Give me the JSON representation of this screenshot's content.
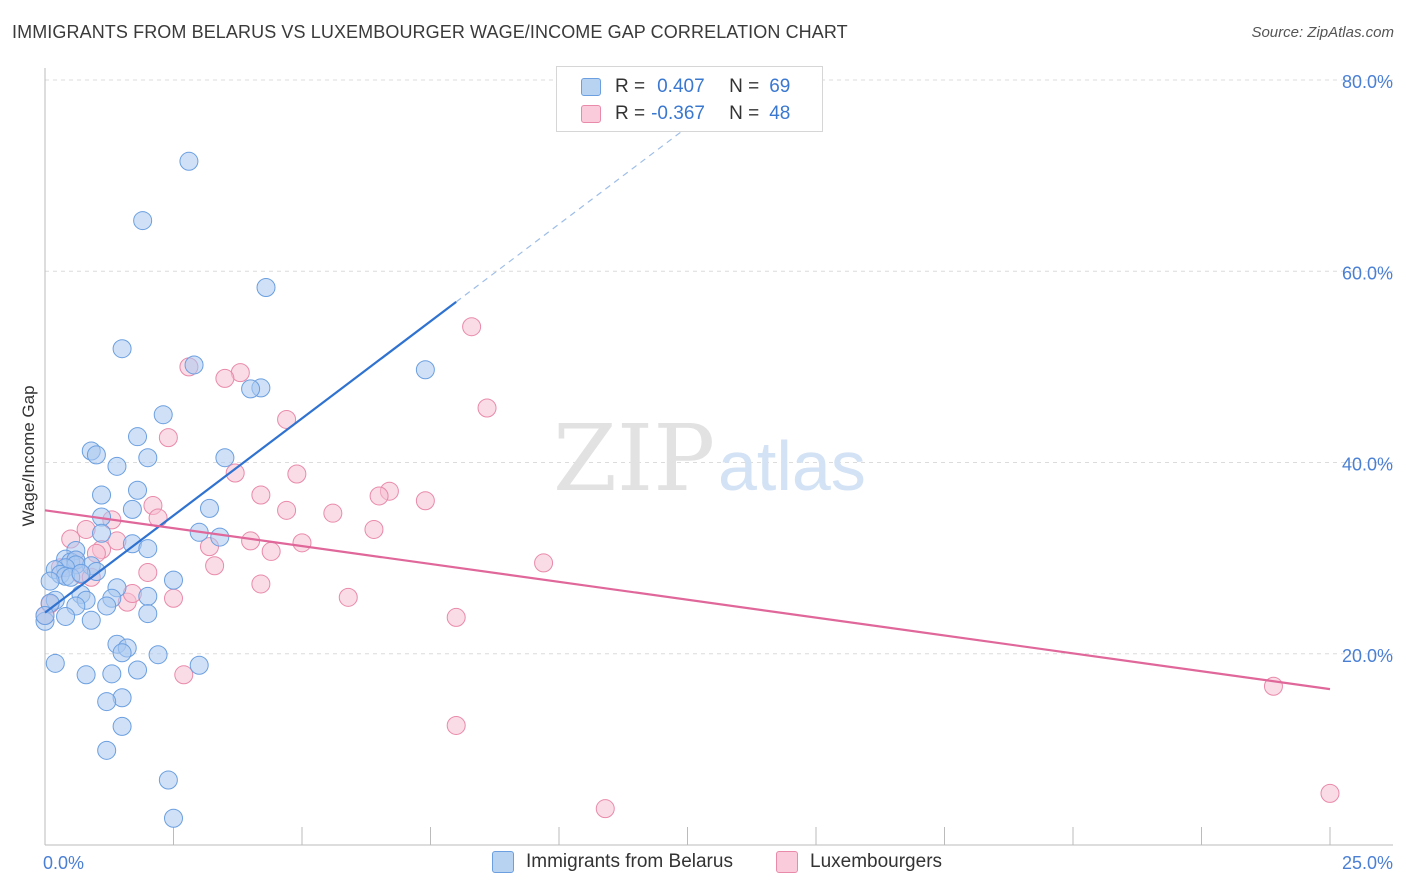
{
  "title": "IMMIGRANTS FROM BELARUS VS LUXEMBOURGER WAGE/INCOME GAP CORRELATION CHART",
  "source": "Source: ZipAtlas.com",
  "watermark": {
    "zip": "ZIP",
    "atlas": "atlas"
  },
  "legend_box": {
    "rows": [
      {
        "r_label": "R =",
        "r_value": "0.407",
        "n_label": "N =",
        "n_value": "69"
      },
      {
        "r_label": "R =",
        "r_value": "-0.367",
        "n_label": "N =",
        "n_value": "48"
      }
    ]
  },
  "colors": {
    "blue_fill": "#a9c8f0",
    "blue_stroke": "#6b9fe0",
    "blue_line": "#2f72d0",
    "pink_fill": "#f6bfd2",
    "pink_stroke": "#e98aaa",
    "pink_line": "#e0679a",
    "tick_text": "#4a7fd4",
    "grid": "#dcdcdc"
  },
  "chart_data": {
    "type": "scatter",
    "title": "IMMIGRANTS FROM BELARUS VS LUXEMBOURGER WAGE/INCOME GAP CORRELATION CHART",
    "xlabel": "",
    "ylabel": "Wage/Income Gap",
    "xlim": [
      0,
      25
    ],
    "ylim": [
      0,
      80
    ],
    "x_tick_labels": [
      "0.0%",
      "25.0%"
    ],
    "y_tick_labels": [
      "20.0%",
      "40.0%",
      "60.0%",
      "80.0%"
    ],
    "y_ticks": [
      20,
      40,
      60,
      80
    ],
    "grid": true,
    "series": [
      {
        "name": "Immigrants from Belarus",
        "color": "blue",
        "points": [
          [
            2.8,
            71.5
          ],
          [
            1.9,
            65.3
          ],
          [
            4.3,
            58.3
          ],
          [
            1.5,
            51.9
          ],
          [
            2.9,
            50.2
          ],
          [
            7.4,
            49.7
          ],
          [
            4.2,
            47.8
          ],
          [
            4.0,
            47.7
          ],
          [
            2.3,
            45.0
          ],
          [
            1.8,
            42.7
          ],
          [
            0.9,
            41.2
          ],
          [
            1.0,
            40.8
          ],
          [
            2.0,
            40.5
          ],
          [
            3.5,
            40.5
          ],
          [
            1.4,
            39.6
          ],
          [
            1.8,
            37.1
          ],
          [
            1.1,
            36.6
          ],
          [
            1.7,
            35.1
          ],
          [
            3.2,
            35.2
          ],
          [
            1.1,
            34.3
          ],
          [
            3.0,
            32.7
          ],
          [
            1.1,
            32.6
          ],
          [
            3.4,
            32.2
          ],
          [
            1.7,
            31.5
          ],
          [
            2.0,
            31.0
          ],
          [
            0.6,
            30.8
          ],
          [
            0.4,
            29.9
          ],
          [
            0.5,
            29.6
          ],
          [
            0.6,
            29.8
          ],
          [
            0.9,
            29.2
          ],
          [
            0.6,
            29.3
          ],
          [
            0.4,
            29.0
          ],
          [
            0.2,
            28.8
          ],
          [
            1.0,
            28.6
          ],
          [
            0.3,
            28.3
          ],
          [
            0.4,
            28.1
          ],
          [
            0.5,
            28.0
          ],
          [
            0.7,
            28.4
          ],
          [
            0.1,
            27.6
          ],
          [
            2.5,
            27.7
          ],
          [
            1.4,
            26.9
          ],
          [
            0.7,
            26.2
          ],
          [
            2.0,
            26.0
          ],
          [
            1.3,
            25.8
          ],
          [
            0.2,
            25.6
          ],
          [
            0.8,
            25.6
          ],
          [
            0.1,
            25.3
          ],
          [
            1.2,
            25.0
          ],
          [
            0.6,
            25.0
          ],
          [
            2.0,
            24.2
          ],
          [
            0.4,
            23.9
          ],
          [
            0.9,
            23.5
          ],
          [
            0.0,
            23.4
          ],
          [
            1.4,
            21.0
          ],
          [
            1.6,
            20.6
          ],
          [
            1.5,
            20.1
          ],
          [
            2.2,
            19.9
          ],
          [
            0.2,
            19.0
          ],
          [
            3.0,
            18.8
          ],
          [
            1.8,
            18.3
          ],
          [
            0.8,
            17.8
          ],
          [
            1.3,
            17.9
          ],
          [
            1.5,
            15.4
          ],
          [
            1.2,
            15.0
          ],
          [
            1.5,
            12.4
          ],
          [
            1.2,
            9.9
          ],
          [
            2.4,
            6.8
          ],
          [
            2.5,
            2.8
          ],
          [
            0.0,
            24.0
          ]
        ],
        "trend": {
          "x0": 0.0,
          "y0": 24.3,
          "x1": 8.0,
          "y1": 56.8,
          "dash_to_x": 13.5
        }
      },
      {
        "name": "Luxembourgers",
        "color": "pink",
        "points": [
          [
            8.3,
            54.2
          ],
          [
            2.8,
            50.0
          ],
          [
            3.8,
            49.4
          ],
          [
            3.5,
            48.8
          ],
          [
            8.6,
            45.7
          ],
          [
            4.7,
            44.5
          ],
          [
            2.4,
            42.6
          ],
          [
            3.7,
            38.9
          ],
          [
            4.9,
            38.8
          ],
          [
            6.7,
            37.0
          ],
          [
            6.5,
            36.5
          ],
          [
            4.2,
            36.6
          ],
          [
            7.4,
            36.0
          ],
          [
            2.1,
            35.5
          ],
          [
            4.7,
            35.0
          ],
          [
            5.6,
            34.7
          ],
          [
            2.2,
            34.2
          ],
          [
            1.3,
            34.0
          ],
          [
            6.4,
            33.0
          ],
          [
            0.8,
            33.0
          ],
          [
            0.5,
            32.0
          ],
          [
            4.0,
            31.8
          ],
          [
            1.4,
            31.8
          ],
          [
            5.0,
            31.6
          ],
          [
            3.2,
            31.2
          ],
          [
            1.1,
            30.9
          ],
          [
            4.4,
            30.7
          ],
          [
            1.0,
            30.5
          ],
          [
            0.6,
            29.8
          ],
          [
            9.7,
            29.5
          ],
          [
            3.3,
            29.2
          ],
          [
            0.3,
            29.0
          ],
          [
            0.7,
            28.3
          ],
          [
            2.0,
            28.5
          ],
          [
            0.9,
            28.0
          ],
          [
            4.2,
            27.3
          ],
          [
            2.5,
            25.8
          ],
          [
            5.9,
            25.9
          ],
          [
            1.6,
            25.4
          ],
          [
            1.7,
            26.3
          ],
          [
            0.1,
            25.2
          ],
          [
            8.0,
            23.8
          ],
          [
            0.0,
            24.0
          ],
          [
            2.7,
            17.8
          ],
          [
            23.9,
            16.6
          ],
          [
            8.0,
            12.5
          ],
          [
            10.9,
            3.8
          ],
          [
            25.0,
            5.4
          ]
        ],
        "trend": {
          "x0": 0.0,
          "y0": 35.0,
          "x1": 25.0,
          "y1": 16.3
        }
      }
    ]
  }
}
